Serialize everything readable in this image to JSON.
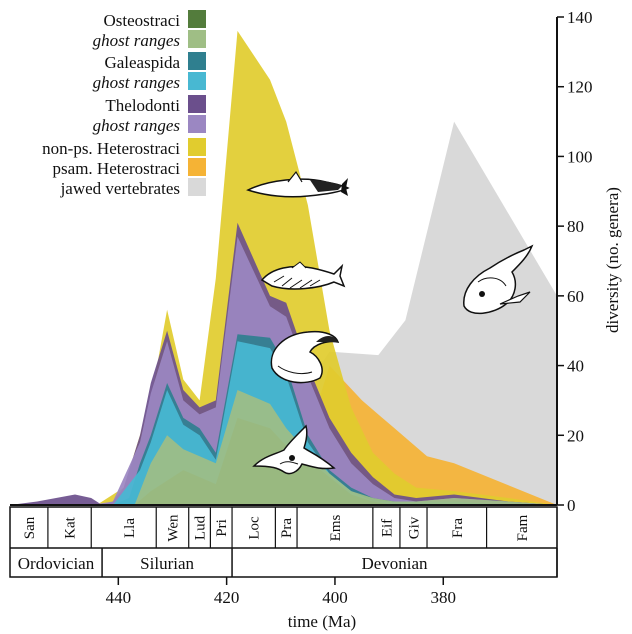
{
  "chart_data": {
    "type": "area",
    "xlabel": "time (Ma)",
    "ylabel": "diversity (no. genera)",
    "xlim": [
      460,
      359
    ],
    "ylim": [
      0,
      140
    ],
    "x_ticks": [
      440,
      420,
      400,
      380
    ],
    "y_ticks": [
      0,
      20,
      40,
      60,
      80,
      100,
      120,
      140
    ],
    "legend_position": "top-left",
    "series": [
      {
        "name": "jawed vertebrates",
        "color": "#d9d9d9",
        "x": [
          443,
          435,
          427,
          419,
          413,
          409,
          401,
          392,
          387,
          378,
          359
        ],
        "y": [
          0,
          2,
          5,
          8,
          15,
          25,
          44,
          43,
          53,
          110,
          60
        ]
      },
      {
        "name": "psam. Heterostraci",
        "color": "#f5b335",
        "x": [
          419,
          413,
          409,
          405,
          401,
          395,
          389,
          383,
          378,
          359
        ],
        "y": [
          0,
          8,
          12,
          20,
          40,
          30,
          22,
          14,
          12,
          0
        ]
      },
      {
        "name": "non-ps. Heterostraci",
        "color": "#e1cc2e",
        "x": [
          444,
          439,
          434,
          431,
          428,
          425,
          422,
          418,
          412,
          409,
          405,
          401,
          397,
          393,
          389,
          385,
          378,
          368,
          359
        ],
        "y": [
          0,
          5,
          30,
          56,
          36,
          30,
          65,
          136,
          122,
          110,
          86,
          50,
          28,
          15,
          9,
          5,
          4,
          2,
          0
        ]
      },
      {
        "name": "Thelodonti",
        "color": "#6b4f8c",
        "x": [
          460,
          455,
          448,
          445,
          443,
          441,
          439,
          436,
          434,
          431,
          428,
          425,
          422,
          418,
          412,
          409,
          405,
          401,
          397,
          393,
          389,
          385,
          378,
          368,
          359
        ],
        "y": [
          0,
          1,
          3,
          2,
          0,
          1,
          5,
          20,
          35,
          50,
          33,
          28,
          30,
          81,
          60,
          58,
          40,
          25,
          15,
          8,
          3,
          2,
          3,
          1,
          0
        ]
      },
      {
        "name": "ghost ranges",
        "group": "Thelodonti",
        "color": "#9b87c2",
        "x": [
          445,
          441,
          436,
          434,
          431,
          428,
          425,
          422,
          418,
          412,
          409,
          405,
          401,
          397,
          393,
          389,
          385,
          378,
          368,
          359
        ],
        "y": [
          0,
          1,
          18,
          32,
          47,
          30,
          26,
          28,
          77,
          57,
          54,
          37,
          22,
          12,
          6,
          2,
          1,
          2,
          1,
          0
        ]
      },
      {
        "name": "Galeaspida",
        "color": "#2f7f8f",
        "x": [
          441,
          438,
          436,
          434,
          431,
          428,
          425,
          422,
          418,
          412,
          409,
          405,
          401,
          397,
          393,
          389,
          385,
          378,
          368,
          359
        ],
        "y": [
          0,
          2,
          12,
          20,
          35,
          25,
          22,
          15,
          49,
          48,
          40,
          20,
          10,
          5,
          2,
          1,
          1,
          1,
          0,
          0
        ]
      },
      {
        "name": "ghost ranges",
        "group": "Galeaspida",
        "color": "#48b8d2",
        "x": [
          441,
          436,
          434,
          431,
          428,
          425,
          422,
          418,
          412,
          409,
          405,
          401,
          397,
          393,
          389,
          385,
          378,
          368,
          359
        ],
        "y": [
          0,
          10,
          18,
          33,
          23,
          20,
          13,
          47,
          45,
          37,
          18,
          9,
          4,
          1,
          1,
          1,
          1,
          0,
          0
        ]
      },
      {
        "name": "Osteostraci",
        "color": "#537c3c",
        "x": [
          437,
          434,
          431,
          428,
          425,
          422,
          418,
          412,
          409,
          405,
          401,
          397,
          393,
          389,
          385,
          378,
          368,
          359
        ],
        "y": [
          0,
          4,
          7,
          10,
          8,
          6,
          25,
          22,
          17,
          13,
          8,
          3,
          1,
          0,
          0,
          0,
          0,
          0
        ]
      },
      {
        "name": "ghost ranges",
        "group": "Osteostraci",
        "color": "#9fbe85",
        "x": [
          437,
          434,
          431,
          428,
          425,
          422,
          418,
          412,
          409,
          405,
          401,
          397,
          393,
          389,
          385,
          378,
          368,
          359
        ],
        "y": [
          0,
          12,
          20,
          16,
          14,
          12,
          33,
          29,
          22,
          15,
          9,
          4,
          2,
          1,
          1,
          2,
          1,
          0
        ]
      }
    ],
    "legend": [
      {
        "label": "Osteostraci",
        "italic": false,
        "color": "#537c3c"
      },
      {
        "label": "ghost ranges",
        "italic": true,
        "color": "#9fbe85"
      },
      {
        "label": "Galeaspida",
        "italic": false,
        "color": "#2f7f8f"
      },
      {
        "label": "ghost ranges",
        "italic": true,
        "color": "#48b8d2"
      },
      {
        "label": "Thelodonti",
        "italic": false,
        "color": "#6b4f8c"
      },
      {
        "label": "ghost ranges",
        "italic": true,
        "color": "#9b87c2"
      },
      {
        "label": "non-ps. Heterostraci",
        "italic": false,
        "color": "#e1cc2e"
      },
      {
        "label": "psam. Heterostraci",
        "italic": false,
        "color": "#f5b335"
      },
      {
        "label": "jawed vertebrates",
        "italic": false,
        "color": "#d9d9d9"
      }
    ],
    "stages": [
      {
        "label": "San",
        "start": 460,
        "end": 453
      },
      {
        "label": "Kat",
        "start": 453,
        "end": 445
      },
      {
        "label": "Lla",
        "start": 443,
        "end": 433
      },
      {
        "label": "Wen",
        "start": 433,
        "end": 427
      },
      {
        "label": "Lud",
        "start": 427,
        "end": 423
      },
      {
        "label": "Pri",
        "start": 423,
        "end": 419
      },
      {
        "label": "Loc",
        "start": 419,
        "end": 411
      },
      {
        "label": "Pra",
        "start": 411,
        "end": 407
      },
      {
        "label": "Ems",
        "start": 407,
        "end": 393
      },
      {
        "label": "Eif",
        "start": 393,
        "end": 388
      },
      {
        "label": "Giv",
        "start": 388,
        "end": 383
      },
      {
        "label": "Fra",
        "start": 383,
        "end": 372
      },
      {
        "label": "Fam",
        "start": 372,
        "end": 359
      }
    ],
    "periods": [
      {
        "label": "Ordovician",
        "start": 460,
        "end": 443
      },
      {
        "label": "Silurian",
        "start": 443,
        "end": 419
      },
      {
        "label": "Devonian",
        "start": 419,
        "end": 359
      }
    ]
  }
}
